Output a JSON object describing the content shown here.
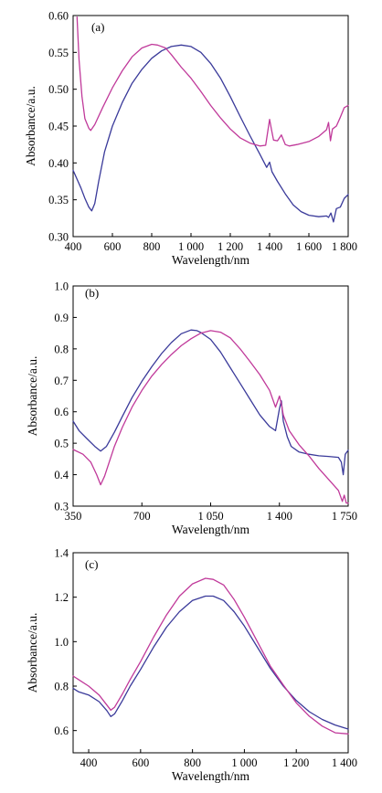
{
  "chart_data": [
    {
      "type": "line",
      "panel_label": "(a)",
      "xlabel": "Wavelength/nm",
      "ylabel": "Absorbance/a.u.",
      "xlim": [
        400,
        1800
      ],
      "ylim": [
        0.3,
        0.6
      ],
      "x_ticks": [
        400,
        600,
        800,
        1000,
        1200,
        1400,
        1600,
        1800
      ],
      "x_tick_labels": [
        "400",
        "600",
        "800",
        "1 000",
        "1 200",
        "1 400",
        "1 600",
        "1 800"
      ],
      "y_ticks": [
        0.3,
        0.35,
        0.4,
        0.45,
        0.5,
        0.55,
        0.6
      ],
      "y_tick_labels": [
        "0.30",
        "0.35",
        "0.40",
        "0.45",
        "0.50",
        "0.55",
        "0.60"
      ],
      "grid": false,
      "legend": "none",
      "series": [
        {
          "color": "#3a3a9a",
          "points": [
            [
              400,
              0.39
            ],
            [
              420,
              0.378
            ],
            [
              440,
              0.366
            ],
            [
              460,
              0.352
            ],
            [
              480,
              0.34
            ],
            [
              495,
              0.335
            ],
            [
              510,
              0.345
            ],
            [
              530,
              0.375
            ],
            [
              560,
              0.415
            ],
            [
              600,
              0.45
            ],
            [
              650,
              0.482
            ],
            [
              700,
              0.508
            ],
            [
              750,
              0.527
            ],
            [
              800,
              0.542
            ],
            [
              850,
              0.552
            ],
            [
              900,
              0.558
            ],
            [
              950,
              0.56
            ],
            [
              1000,
              0.558
            ],
            [
              1050,
              0.55
            ],
            [
              1100,
              0.535
            ],
            [
              1150,
              0.515
            ],
            [
              1200,
              0.49
            ],
            [
              1250,
              0.463
            ],
            [
              1300,
              0.437
            ],
            [
              1350,
              0.412
            ],
            [
              1385,
              0.394
            ],
            [
              1400,
              0.401
            ],
            [
              1412,
              0.388
            ],
            [
              1440,
              0.375
            ],
            [
              1480,
              0.358
            ],
            [
              1520,
              0.343
            ],
            [
              1560,
              0.334
            ],
            [
              1600,
              0.329
            ],
            [
              1650,
              0.327
            ],
            [
              1690,
              0.328
            ],
            [
              1700,
              0.326
            ],
            [
              1712,
              0.332
            ],
            [
              1725,
              0.32
            ],
            [
              1740,
              0.338
            ],
            [
              1760,
              0.34
            ],
            [
              1780,
              0.352
            ],
            [
              1800,
              0.357
            ]
          ]
        },
        {
          "color": "#c0399a",
          "points": [
            [
              420,
              0.598
            ],
            [
              430,
              0.54
            ],
            [
              445,
              0.49
            ],
            [
              460,
              0.46
            ],
            [
              480,
              0.447
            ],
            [
              490,
              0.444
            ],
            [
              510,
              0.452
            ],
            [
              550,
              0.475
            ],
            [
              600,
              0.502
            ],
            [
              650,
              0.525
            ],
            [
              700,
              0.544
            ],
            [
              750,
              0.556
            ],
            [
              800,
              0.561
            ],
            [
              830,
              0.56
            ],
            [
              870,
              0.556
            ],
            [
              900,
              0.547
            ],
            [
              950,
              0.53
            ],
            [
              1000,
              0.515
            ],
            [
              1050,
              0.497
            ],
            [
              1100,
              0.478
            ],
            [
              1150,
              0.461
            ],
            [
              1200,
              0.446
            ],
            [
              1250,
              0.434
            ],
            [
              1300,
              0.427
            ],
            [
              1350,
              0.423
            ],
            [
              1380,
              0.424
            ],
            [
              1400,
              0.459
            ],
            [
              1410,
              0.445
            ],
            [
              1420,
              0.431
            ],
            [
              1440,
              0.43
            ],
            [
              1460,
              0.438
            ],
            [
              1480,
              0.425
            ],
            [
              1500,
              0.423
            ],
            [
              1540,
              0.425
            ],
            [
              1600,
              0.429
            ],
            [
              1650,
              0.436
            ],
            [
              1690,
              0.445
            ],
            [
              1700,
              0.455
            ],
            [
              1710,
              0.43
            ],
            [
              1720,
              0.446
            ],
            [
              1740,
              0.45
            ],
            [
              1760,
              0.462
            ],
            [
              1780,
              0.475
            ],
            [
              1800,
              0.478
            ]
          ]
        }
      ]
    },
    {
      "type": "line",
      "panel_label": "(b)",
      "xlabel": "Wavelength/nm",
      "ylabel": "Absorbance/a.u.",
      "xlim": [
        350,
        1750
      ],
      "ylim": [
        0.3,
        1.0
      ],
      "x_ticks": [
        350,
        700,
        1050,
        1400,
        1750
      ],
      "x_tick_labels": [
        "350",
        "700",
        "1 050",
        "1 400",
        "1 750"
      ],
      "y_ticks": [
        0.3,
        0.4,
        0.5,
        0.6,
        0.7,
        0.8,
        0.9,
        1.0
      ],
      "y_tick_labels": [
        "0.3",
        "0.4",
        "0.5",
        "0.6",
        "0.7",
        "0.8",
        "0.9",
        "1.0"
      ],
      "grid": false,
      "legend": "none",
      "series": [
        {
          "color": "#3a3a9a",
          "points": [
            [
              350,
              0.57
            ],
            [
              380,
              0.54
            ],
            [
              420,
              0.515
            ],
            [
              460,
              0.49
            ],
            [
              490,
              0.475
            ],
            [
              520,
              0.49
            ],
            [
              560,
              0.535
            ],
            [
              600,
              0.585
            ],
            [
              650,
              0.645
            ],
            [
              700,
              0.697
            ],
            [
              750,
              0.743
            ],
            [
              800,
              0.785
            ],
            [
              850,
              0.82
            ],
            [
              900,
              0.848
            ],
            [
              950,
              0.86
            ],
            [
              980,
              0.858
            ],
            [
              1000,
              0.852
            ],
            [
              1050,
              0.83
            ],
            [
              1100,
              0.79
            ],
            [
              1150,
              0.74
            ],
            [
              1200,
              0.69
            ],
            [
              1250,
              0.64
            ],
            [
              1300,
              0.59
            ],
            [
              1350,
              0.553
            ],
            [
              1380,
              0.54
            ],
            [
              1400,
              0.61
            ],
            [
              1410,
              0.635
            ],
            [
              1420,
              0.57
            ],
            [
              1440,
              0.52
            ],
            [
              1460,
              0.49
            ],
            [
              1500,
              0.472
            ],
            [
              1550,
              0.465
            ],
            [
              1600,
              0.46
            ],
            [
              1650,
              0.458
            ],
            [
              1700,
              0.455
            ],
            [
              1715,
              0.44
            ],
            [
              1725,
              0.4
            ],
            [
              1735,
              0.465
            ],
            [
              1750,
              0.478
            ]
          ]
        },
        {
          "color": "#c0399a",
          "points": [
            [
              350,
              0.48
            ],
            [
              400,
              0.465
            ],
            [
              440,
              0.44
            ],
            [
              470,
              0.4
            ],
            [
              490,
              0.368
            ],
            [
              510,
              0.395
            ],
            [
              560,
              0.49
            ],
            [
              600,
              0.55
            ],
            [
              650,
              0.615
            ],
            [
              700,
              0.668
            ],
            [
              750,
              0.713
            ],
            [
              800,
              0.75
            ],
            [
              850,
              0.782
            ],
            [
              900,
              0.81
            ],
            [
              950,
              0.832
            ],
            [
              1000,
              0.85
            ],
            [
              1050,
              0.858
            ],
            [
              1100,
              0.853
            ],
            [
              1150,
              0.835
            ],
            [
              1200,
              0.8
            ],
            [
              1250,
              0.76
            ],
            [
              1300,
              0.718
            ],
            [
              1350,
              0.668
            ],
            [
              1380,
              0.615
            ],
            [
              1400,
              0.65
            ],
            [
              1410,
              0.625
            ],
            [
              1420,
              0.59
            ],
            [
              1450,
              0.54
            ],
            [
              1500,
              0.495
            ],
            [
              1550,
              0.46
            ],
            [
              1600,
              0.42
            ],
            [
              1650,
              0.385
            ],
            [
              1700,
              0.35
            ],
            [
              1720,
              0.315
            ],
            [
              1730,
              0.335
            ],
            [
              1740,
              0.31
            ],
            [
              1750,
              0.31
            ]
          ]
        }
      ]
    },
    {
      "type": "line",
      "panel_label": "(c)",
      "xlabel": "Wavelength/nm",
      "ylabel": "Absorbance/a.u.",
      "xlim": [
        340,
        1400
      ],
      "ylim": [
        0.5,
        1.4
      ],
      "x_ticks": [
        400,
        600,
        800,
        1000,
        1200,
        1400
      ],
      "x_tick_labels": [
        "400",
        "600",
        "800",
        "1 000",
        "1 200",
        "1 400"
      ],
      "y_ticks": [
        0.6,
        0.8,
        1.0,
        1.2,
        1.4
      ],
      "y_tick_labels": [
        "0.6",
        "0.8",
        "1.0",
        "1.2",
        "1.4"
      ],
      "grid": false,
      "legend": "none",
      "series": [
        {
          "color": "#3a3a9a",
          "points": [
            [
              340,
              0.79
            ],
            [
              360,
              0.775
            ],
            [
              400,
              0.76
            ],
            [
              440,
              0.73
            ],
            [
              470,
              0.69
            ],
            [
              485,
              0.663
            ],
            [
              500,
              0.675
            ],
            [
              530,
              0.735
            ],
            [
              560,
              0.8
            ],
            [
              600,
              0.875
            ],
            [
              650,
              0.975
            ],
            [
              700,
              1.065
            ],
            [
              750,
              1.135
            ],
            [
              800,
              1.185
            ],
            [
              850,
              1.205
            ],
            [
              880,
              1.205
            ],
            [
              920,
              1.185
            ],
            [
              960,
              1.135
            ],
            [
              1000,
              1.07
            ],
            [
              1050,
              0.975
            ],
            [
              1100,
              0.88
            ],
            [
              1150,
              0.8
            ],
            [
              1200,
              0.735
            ],
            [
              1250,
              0.685
            ],
            [
              1300,
              0.65
            ],
            [
              1350,
              0.625
            ],
            [
              1400,
              0.607
            ]
          ]
        },
        {
          "color": "#c0399a",
          "points": [
            [
              340,
              0.845
            ],
            [
              360,
              0.83
            ],
            [
              400,
              0.8
            ],
            [
              440,
              0.76
            ],
            [
              470,
              0.715
            ],
            [
              485,
              0.692
            ],
            [
              500,
              0.705
            ],
            [
              530,
              0.765
            ],
            [
              560,
              0.83
            ],
            [
              600,
              0.91
            ],
            [
              650,
              1.02
            ],
            [
              700,
              1.12
            ],
            [
              750,
              1.205
            ],
            [
              800,
              1.26
            ],
            [
              850,
              1.285
            ],
            [
              880,
              1.28
            ],
            [
              920,
              1.255
            ],
            [
              960,
              1.19
            ],
            [
              1000,
              1.11
            ],
            [
              1050,
              1.0
            ],
            [
              1100,
              0.89
            ],
            [
              1150,
              0.805
            ],
            [
              1200,
              0.725
            ],
            [
              1250,
              0.665
            ],
            [
              1300,
              0.62
            ],
            [
              1350,
              0.59
            ],
            [
              1400,
              0.585
            ]
          ]
        }
      ]
    }
  ]
}
